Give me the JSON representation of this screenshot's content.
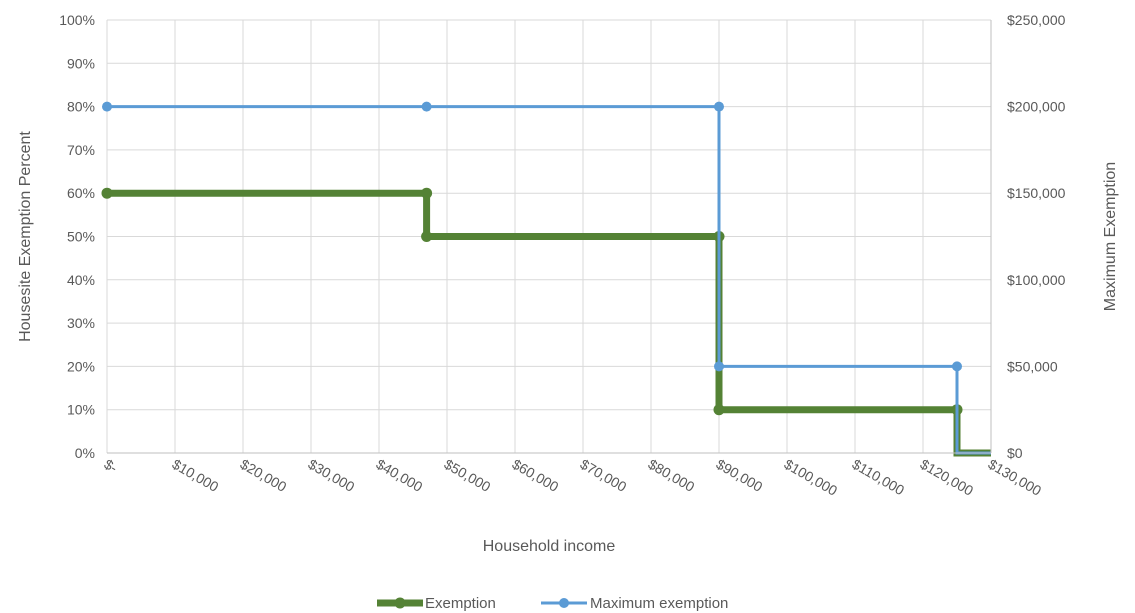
{
  "chart_data": {
    "type": "line",
    "title": "",
    "xlabel": "Household income",
    "ylabel_left": "Housesite Exemption Percent",
    "ylabel_right": "Maximum Exemption",
    "xlim": [
      0,
      130000
    ],
    "ylim_left": [
      0,
      100
    ],
    "ylim_right": [
      0,
      250000
    ],
    "grid": true,
    "legend_position": "bottom",
    "x_ticks": [
      {
        "value": 0,
        "label": "$-"
      },
      {
        "value": 10000,
        "label": "$10,000"
      },
      {
        "value": 20000,
        "label": "$20,000"
      },
      {
        "value": 30000,
        "label": "$30,000"
      },
      {
        "value": 40000,
        "label": "$40,000"
      },
      {
        "value": 50000,
        "label": "$50,000"
      },
      {
        "value": 60000,
        "label": "$60,000"
      },
      {
        "value": 70000,
        "label": "$70,000"
      },
      {
        "value": 80000,
        "label": "$80,000"
      },
      {
        "value": 90000,
        "label": "$90,000"
      },
      {
        "value": 100000,
        "label": "$100,000"
      },
      {
        "value": 110000,
        "label": "$110,000"
      },
      {
        "value": 120000,
        "label": "$120,000"
      },
      {
        "value": 130000,
        "label": "$130,000"
      }
    ],
    "y_ticks_left": [
      {
        "value": 0,
        "label": "0%"
      },
      {
        "value": 10,
        "label": "10%"
      },
      {
        "value": 20,
        "label": "20%"
      },
      {
        "value": 30,
        "label": "30%"
      },
      {
        "value": 40,
        "label": "40%"
      },
      {
        "value": 50,
        "label": "50%"
      },
      {
        "value": 60,
        "label": "60%"
      },
      {
        "value": 70,
        "label": "70%"
      },
      {
        "value": 80,
        "label": "80%"
      },
      {
        "value": 90,
        "label": "90%"
      },
      {
        "value": 100,
        "label": "100%"
      }
    ],
    "y_ticks_right": [
      {
        "value": 0,
        "label": "$0"
      },
      {
        "value": 50000,
        "label": "$50,000"
      },
      {
        "value": 100000,
        "label": "$100,000"
      },
      {
        "value": 150000,
        "label": "$150,000"
      },
      {
        "value": 200000,
        "label": "$200,000"
      },
      {
        "value": 250000,
        "label": "$250,000"
      }
    ],
    "series": [
      {
        "name": "Exemption",
        "axis": "left",
        "color": "#548235",
        "x": [
          0,
          47000,
          47000,
          90000,
          90000,
          125000,
          125000,
          130000
        ],
        "y": [
          60,
          60,
          50,
          50,
          10,
          10,
          0,
          0
        ],
        "markers": [
          [
            0,
            60
          ],
          [
            47000,
            60
          ],
          [
            47000,
            50
          ],
          [
            90000,
            50
          ],
          [
            90000,
            10
          ],
          [
            125000,
            10
          ]
        ]
      },
      {
        "name": "Maximum exemption",
        "axis": "right",
        "color": "#5B9BD5",
        "x": [
          0,
          47000,
          90000,
          90000,
          125000,
          125000,
          130000
        ],
        "y": [
          200000,
          200000,
          200000,
          50000,
          50000,
          0,
          0
        ],
        "markers": [
          [
            0,
            200000
          ],
          [
            47000,
            200000
          ],
          [
            90000,
            200000
          ],
          [
            90000,
            50000
          ],
          [
            125000,
            50000
          ]
        ]
      }
    ]
  }
}
